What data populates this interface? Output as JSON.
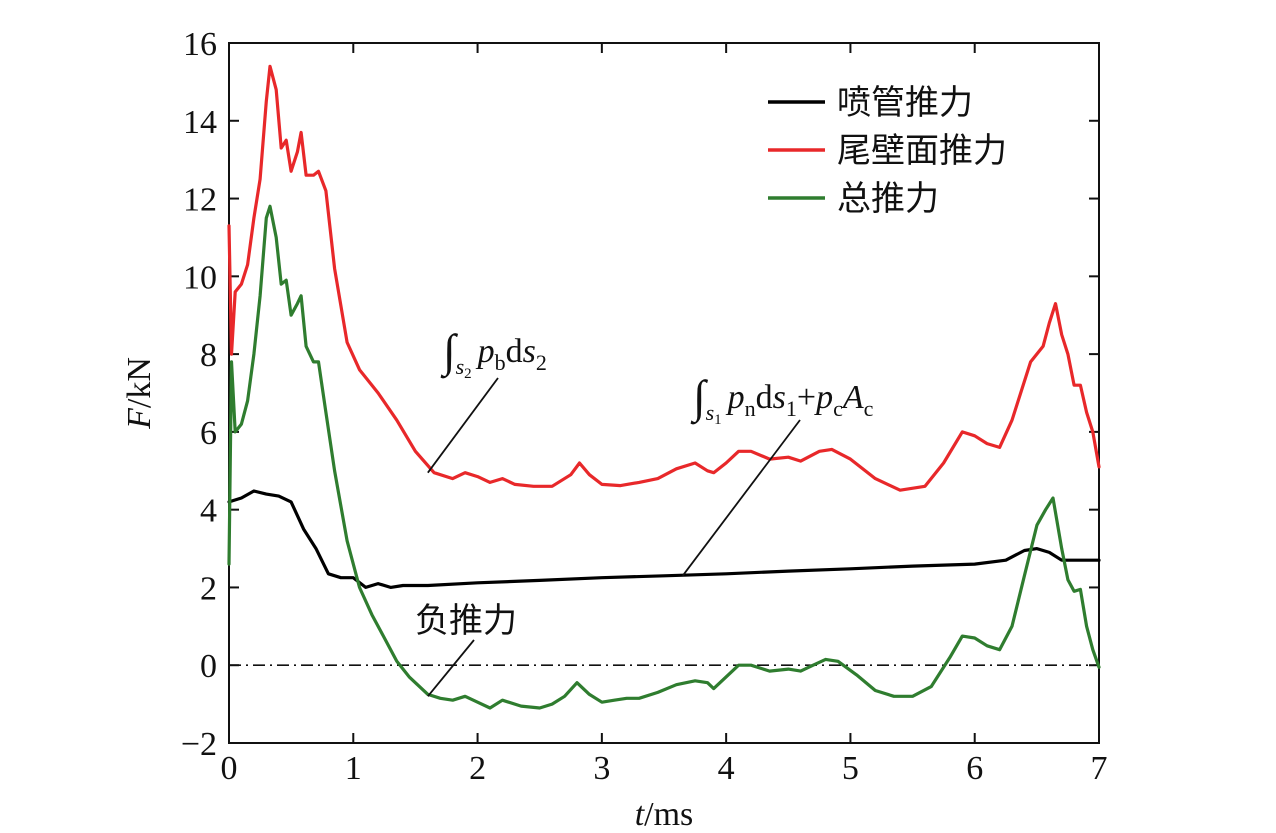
{
  "chart_data": {
    "type": "line",
    "xlabel": {
      "var": "t",
      "unit": "/ms"
    },
    "ylabel": {
      "var": "F",
      "unit": "/kN"
    },
    "xlim": [
      0,
      7
    ],
    "ylim": [
      -2,
      16
    ],
    "x_ticks": [
      0,
      1,
      2,
      3,
      4,
      5,
      6,
      7
    ],
    "y_ticks": [
      -2,
      0,
      2,
      4,
      6,
      8,
      10,
      12,
      14,
      16
    ],
    "x_tick_labels": [
      "0",
      "1",
      "2",
      "3",
      "4",
      "5",
      "6",
      "7"
    ],
    "y_tick_labels": [
      "−2",
      "0",
      "2",
      "4",
      "6",
      "8",
      "10",
      "12",
      "14",
      "16"
    ],
    "zero_line": {
      "y": 0,
      "style": "dash-dot"
    },
    "legend": {
      "placement": "top-right"
    },
    "series": [
      {
        "name": "喷管推力",
        "color": "#000000",
        "points": [
          [
            0,
            4.2
          ],
          [
            0.1,
            4.3
          ],
          [
            0.2,
            4.48
          ],
          [
            0.3,
            4.4
          ],
          [
            0.4,
            4.35
          ],
          [
            0.5,
            4.2
          ],
          [
            0.6,
            3.5
          ],
          [
            0.7,
            3.0
          ],
          [
            0.8,
            2.35
          ],
          [
            0.9,
            2.25
          ],
          [
            1.0,
            2.25
          ],
          [
            1.1,
            2.0
          ],
          [
            1.2,
            2.1
          ],
          [
            1.3,
            2.0
          ],
          [
            1.4,
            2.05
          ],
          [
            1.6,
            2.05
          ],
          [
            2.0,
            2.12
          ],
          [
            2.5,
            2.18
          ],
          [
            3.0,
            2.25
          ],
          [
            3.5,
            2.3
          ],
          [
            4.0,
            2.35
          ],
          [
            4.5,
            2.42
          ],
          [
            5.0,
            2.48
          ],
          [
            5.5,
            2.55
          ],
          [
            6.0,
            2.6
          ],
          [
            6.25,
            2.7
          ],
          [
            6.4,
            2.95
          ],
          [
            6.5,
            3.0
          ],
          [
            6.6,
            2.9
          ],
          [
            6.7,
            2.7
          ],
          [
            6.85,
            2.7
          ],
          [
            7.0,
            2.7
          ]
        ]
      },
      {
        "name": "尾壁面推力",
        "color": "#e8282a",
        "points": [
          [
            0,
            11.3
          ],
          [
            0.02,
            8.0
          ],
          [
            0.05,
            9.6
          ],
          [
            0.1,
            9.8
          ],
          [
            0.15,
            10.3
          ],
          [
            0.2,
            11.5
          ],
          [
            0.25,
            12.5
          ],
          [
            0.3,
            14.5
          ],
          [
            0.33,
            15.4
          ],
          [
            0.38,
            14.8
          ],
          [
            0.42,
            13.3
          ],
          [
            0.46,
            13.5
          ],
          [
            0.5,
            12.7
          ],
          [
            0.55,
            13.2
          ],
          [
            0.58,
            13.7
          ],
          [
            0.62,
            12.6
          ],
          [
            0.68,
            12.6
          ],
          [
            0.72,
            12.7
          ],
          [
            0.78,
            12.2
          ],
          [
            0.85,
            10.2
          ],
          [
            0.95,
            8.3
          ],
          [
            1.05,
            7.6
          ],
          [
            1.2,
            7.0
          ],
          [
            1.35,
            6.3
          ],
          [
            1.5,
            5.5
          ],
          [
            1.65,
            4.95
          ],
          [
            1.8,
            4.8
          ],
          [
            1.9,
            4.95
          ],
          [
            2.0,
            4.85
          ],
          [
            2.1,
            4.7
          ],
          [
            2.2,
            4.8
          ],
          [
            2.3,
            4.65
          ],
          [
            2.45,
            4.6
          ],
          [
            2.6,
            4.6
          ],
          [
            2.75,
            4.9
          ],
          [
            2.82,
            5.2
          ],
          [
            2.9,
            4.9
          ],
          [
            3.0,
            4.65
          ],
          [
            3.15,
            4.62
          ],
          [
            3.3,
            4.7
          ],
          [
            3.45,
            4.8
          ],
          [
            3.6,
            5.05
          ],
          [
            3.75,
            5.2
          ],
          [
            3.85,
            5.0
          ],
          [
            3.9,
            4.95
          ],
          [
            4.0,
            5.2
          ],
          [
            4.1,
            5.5
          ],
          [
            4.2,
            5.5
          ],
          [
            4.35,
            5.3
          ],
          [
            4.5,
            5.35
          ],
          [
            4.6,
            5.25
          ],
          [
            4.75,
            5.5
          ],
          [
            4.85,
            5.55
          ],
          [
            5.0,
            5.3
          ],
          [
            5.2,
            4.8
          ],
          [
            5.4,
            4.5
          ],
          [
            5.6,
            4.6
          ],
          [
            5.75,
            5.2
          ],
          [
            5.9,
            6.0
          ],
          [
            6.0,
            5.9
          ],
          [
            6.1,
            5.7
          ],
          [
            6.2,
            5.6
          ],
          [
            6.3,
            6.3
          ],
          [
            6.45,
            7.8
          ],
          [
            6.55,
            8.2
          ],
          [
            6.6,
            8.8
          ],
          [
            6.65,
            9.3
          ],
          [
            6.7,
            8.5
          ],
          [
            6.75,
            8.0
          ],
          [
            6.8,
            7.2
          ],
          [
            6.85,
            7.2
          ],
          [
            6.9,
            6.5
          ],
          [
            6.95,
            6.0
          ],
          [
            7.0,
            5.1
          ]
        ]
      },
      {
        "name": "总推力",
        "color": "#2f7d2f",
        "points": [
          [
            0,
            2.6
          ],
          [
            0.02,
            7.8
          ],
          [
            0.05,
            6.0
          ],
          [
            0.1,
            6.2
          ],
          [
            0.15,
            6.8
          ],
          [
            0.2,
            8.0
          ],
          [
            0.25,
            9.5
          ],
          [
            0.3,
            11.5
          ],
          [
            0.33,
            11.8
          ],
          [
            0.38,
            11.0
          ],
          [
            0.42,
            9.8
          ],
          [
            0.46,
            9.9
          ],
          [
            0.5,
            9.0
          ],
          [
            0.55,
            9.3
          ],
          [
            0.58,
            9.5
          ],
          [
            0.62,
            8.2
          ],
          [
            0.68,
            7.8
          ],
          [
            0.72,
            7.8
          ],
          [
            0.78,
            6.5
          ],
          [
            0.85,
            5.0
          ],
          [
            0.95,
            3.2
          ],
          [
            1.05,
            2.0
          ],
          [
            1.15,
            1.3
          ],
          [
            1.25,
            0.7
          ],
          [
            1.35,
            0.1
          ],
          [
            1.45,
            -0.3
          ],
          [
            1.6,
            -0.75
          ],
          [
            1.7,
            -0.85
          ],
          [
            1.8,
            -0.9
          ],
          [
            1.9,
            -0.8
          ],
          [
            2.0,
            -0.95
          ],
          [
            2.1,
            -1.1
          ],
          [
            2.2,
            -0.9
          ],
          [
            2.35,
            -1.05
          ],
          [
            2.5,
            -1.1
          ],
          [
            2.6,
            -1.0
          ],
          [
            2.7,
            -0.8
          ],
          [
            2.8,
            -0.45
          ],
          [
            2.9,
            -0.75
          ],
          [
            3.0,
            -0.95
          ],
          [
            3.1,
            -0.9
          ],
          [
            3.2,
            -0.85
          ],
          [
            3.3,
            -0.85
          ],
          [
            3.45,
            -0.7
          ],
          [
            3.6,
            -0.5
          ],
          [
            3.75,
            -0.4
          ],
          [
            3.85,
            -0.45
          ],
          [
            3.9,
            -0.6
          ],
          [
            4.0,
            -0.3
          ],
          [
            4.1,
            0.0
          ],
          [
            4.2,
            0.0
          ],
          [
            4.35,
            -0.15
          ],
          [
            4.5,
            -0.1
          ],
          [
            4.6,
            -0.15
          ],
          [
            4.7,
            0.0
          ],
          [
            4.8,
            0.15
          ],
          [
            4.9,
            0.1
          ],
          [
            5.05,
            -0.25
          ],
          [
            5.2,
            -0.65
          ],
          [
            5.35,
            -0.8
          ],
          [
            5.5,
            -0.8
          ],
          [
            5.65,
            -0.55
          ],
          [
            5.8,
            0.2
          ],
          [
            5.9,
            0.75
          ],
          [
            6.0,
            0.7
          ],
          [
            6.1,
            0.5
          ],
          [
            6.2,
            0.4
          ],
          [
            6.3,
            1.0
          ],
          [
            6.4,
            2.3
          ],
          [
            6.5,
            3.6
          ],
          [
            6.57,
            4.0
          ],
          [
            6.63,
            4.3
          ],
          [
            6.7,
            3.0
          ],
          [
            6.75,
            2.2
          ],
          [
            6.8,
            1.9
          ],
          [
            6.85,
            1.95
          ],
          [
            6.9,
            1.0
          ],
          [
            6.95,
            0.4
          ],
          [
            7.0,
            -0.05
          ]
        ]
      }
    ],
    "annotations": {
      "wall_integral": {
        "ds_mid": "d",
        "sub_s": "s",
        "sub_s_num": "2",
        "p": "p",
        "sub_p": "b",
        "s": "s",
        "sub_ds": "2",
        "target": [
          1.6,
          4.95
        ]
      },
      "nozzle_integral": {
        "ds_mid": "d",
        "sub_s": "s",
        "sub_s_num": "1",
        "p": "p",
        "sub_p": "n",
        "s": "s",
        "sub_ds": "1",
        "plus": "+",
        "pc": "p",
        "sub_pc": "c",
        "A": "A",
        "sub_A": "c",
        "target": [
          3.65,
          2.3
        ]
      },
      "negative": {
        "text": "负推力",
        "target": [
          1.6,
          -0.8
        ]
      }
    }
  }
}
